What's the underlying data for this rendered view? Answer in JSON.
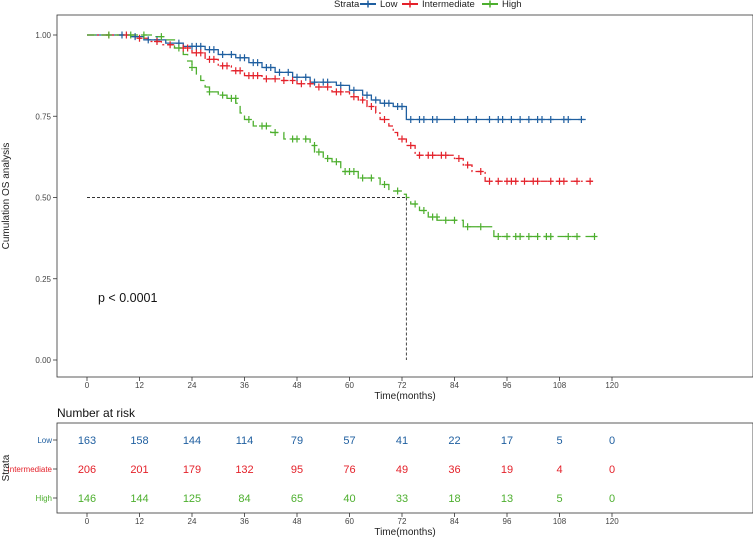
{
  "legend": {
    "title": "Strata",
    "items": [
      {
        "name": "Low",
        "color": "#1f5fa0"
      },
      {
        "name": "Intermediate",
        "color": "#e4212a"
      },
      {
        "name": "High",
        "color": "#4daf2e"
      }
    ]
  },
  "chart_data": {
    "type": "line",
    "title": "",
    "xlabel": "Time(months)",
    "ylabel": "Cumulation OS analysis",
    "xlim": [
      -10,
      125
    ],
    "ylim": [
      -0.05,
      1.05
    ],
    "x_ticks": [
      "0",
      "12",
      "24",
      "36",
      "48",
      "60",
      "72",
      "84",
      "96",
      "108",
      "120"
    ],
    "y_ticks": [
      "0.00",
      "0.25",
      "0.50",
      "0.75",
      "1.00"
    ],
    "pvalue_label": "p < 0.0001",
    "median_line": {
      "x": 73,
      "y": 0.5
    },
    "series": [
      {
        "name": "Low",
        "color": "#1f5fa0",
        "dash": "",
        "steps": [
          [
            0,
            1.0
          ],
          [
            10,
            0.995
          ],
          [
            13,
            0.985
          ],
          [
            18,
            0.975
          ],
          [
            22,
            0.965
          ],
          [
            27,
            0.955
          ],
          [
            30,
            0.94
          ],
          [
            34,
            0.93
          ],
          [
            37,
            0.915
          ],
          [
            40,
            0.9
          ],
          [
            43,
            0.885
          ],
          [
            47,
            0.87
          ],
          [
            51,
            0.855
          ],
          [
            57,
            0.845
          ],
          [
            60,
            0.83
          ],
          [
            63,
            0.815
          ],
          [
            65,
            0.8
          ],
          [
            67,
            0.79
          ],
          [
            70,
            0.78
          ],
          [
            73,
            0.74
          ],
          [
            114,
            0.74
          ]
        ],
        "censors": [
          [
            8,
            1.0
          ],
          [
            11,
            0.995
          ],
          [
            14,
            0.985
          ],
          [
            16,
            0.985
          ],
          [
            21,
            0.975
          ],
          [
            24,
            0.965
          ],
          [
            25,
            0.965
          ],
          [
            26,
            0.965
          ],
          [
            28,
            0.955
          ],
          [
            29,
            0.955
          ],
          [
            31,
            0.94
          ],
          [
            33,
            0.94
          ],
          [
            35,
            0.93
          ],
          [
            36,
            0.93
          ],
          [
            38,
            0.915
          ],
          [
            39,
            0.915
          ],
          [
            41,
            0.9
          ],
          [
            42,
            0.9
          ],
          [
            44,
            0.885
          ],
          [
            46,
            0.885
          ],
          [
            48,
            0.87
          ],
          [
            50,
            0.87
          ],
          [
            52,
            0.855
          ],
          [
            54,
            0.855
          ],
          [
            55,
            0.855
          ],
          [
            58,
            0.845
          ],
          [
            61,
            0.83
          ],
          [
            64,
            0.815
          ],
          [
            66,
            0.8
          ],
          [
            68,
            0.79
          ],
          [
            69,
            0.79
          ],
          [
            71,
            0.78
          ],
          [
            72,
            0.78
          ],
          [
            74,
            0.74
          ],
          [
            76,
            0.74
          ],
          [
            77,
            0.74
          ],
          [
            79,
            0.74
          ],
          [
            80,
            0.74
          ],
          [
            84,
            0.74
          ],
          [
            87,
            0.74
          ],
          [
            89,
            0.74
          ],
          [
            92,
            0.74
          ],
          [
            94,
            0.74
          ],
          [
            95,
            0.74
          ],
          [
            97,
            0.74
          ],
          [
            99,
            0.74
          ],
          [
            101,
            0.74
          ],
          [
            103,
            0.74
          ],
          [
            104,
            0.74
          ],
          [
            106,
            0.74
          ],
          [
            109,
            0.74
          ],
          [
            110,
            0.74
          ],
          [
            113,
            0.74
          ]
        ]
      },
      {
        "name": "Intermediate",
        "color": "#e4212a",
        "dash": "7,3,2,3",
        "steps": [
          [
            0,
            1.0
          ],
          [
            11,
            0.99
          ],
          [
            14,
            0.98
          ],
          [
            17,
            0.97
          ],
          [
            20,
            0.96
          ],
          [
            24,
            0.945
          ],
          [
            27,
            0.925
          ],
          [
            30,
            0.905
          ],
          [
            33,
            0.89
          ],
          [
            36,
            0.875
          ],
          [
            40,
            0.865
          ],
          [
            44,
            0.86
          ],
          [
            48,
            0.85
          ],
          [
            52,
            0.84
          ],
          [
            56,
            0.825
          ],
          [
            60,
            0.81
          ],
          [
            62,
            0.8
          ],
          [
            64,
            0.78
          ],
          [
            66,
            0.76
          ],
          [
            67,
            0.74
          ],
          [
            69,
            0.72
          ],
          [
            70,
            0.7
          ],
          [
            71,
            0.68
          ],
          [
            73,
            0.66
          ],
          [
            75,
            0.63
          ],
          [
            84,
            0.62
          ],
          [
            86,
            0.6
          ],
          [
            88,
            0.58
          ],
          [
            91,
            0.55
          ],
          [
            116,
            0.55
          ]
        ],
        "censors": [
          [
            5,
            1.0
          ],
          [
            9,
            1.0
          ],
          [
            12,
            0.99
          ],
          [
            16,
            0.98
          ],
          [
            19,
            0.97
          ],
          [
            22,
            0.96
          ],
          [
            23,
            0.96
          ],
          [
            25,
            0.945
          ],
          [
            26,
            0.945
          ],
          [
            28,
            0.925
          ],
          [
            29,
            0.925
          ],
          [
            31,
            0.905
          ],
          [
            32,
            0.905
          ],
          [
            34,
            0.89
          ],
          [
            35,
            0.89
          ],
          [
            37,
            0.875
          ],
          [
            38,
            0.875
          ],
          [
            39,
            0.875
          ],
          [
            41,
            0.865
          ],
          [
            43,
            0.865
          ],
          [
            45,
            0.86
          ],
          [
            47,
            0.86
          ],
          [
            49,
            0.85
          ],
          [
            51,
            0.85
          ],
          [
            53,
            0.84
          ],
          [
            55,
            0.84
          ],
          [
            57,
            0.825
          ],
          [
            58,
            0.825
          ],
          [
            61,
            0.81
          ],
          [
            63,
            0.8
          ],
          [
            65,
            0.78
          ],
          [
            68,
            0.74
          ],
          [
            72,
            0.68
          ],
          [
            74,
            0.66
          ],
          [
            76,
            0.63
          ],
          [
            78,
            0.63
          ],
          [
            79,
            0.63
          ],
          [
            81,
            0.63
          ],
          [
            82,
            0.63
          ],
          [
            85,
            0.62
          ],
          [
            87,
            0.6
          ],
          [
            90,
            0.58
          ],
          [
            92,
            0.55
          ],
          [
            94,
            0.55
          ],
          [
            96,
            0.55
          ],
          [
            97,
            0.55
          ],
          [
            98,
            0.55
          ],
          [
            100,
            0.55
          ],
          [
            102,
            0.55
          ],
          [
            103,
            0.55
          ],
          [
            106,
            0.55
          ],
          [
            108,
            0.55
          ],
          [
            109,
            0.55
          ],
          [
            112,
            0.55
          ],
          [
            115,
            0.55
          ]
        ]
      },
      {
        "name": "High",
        "color": "#4daf2e",
        "dash": "9,5",
        "steps": [
          [
            0,
            1.0
          ],
          [
            15,
            0.995
          ],
          [
            18,
            0.985
          ],
          [
            20,
            0.96
          ],
          [
            22,
            0.94
          ],
          [
            23,
            0.92
          ],
          [
            24,
            0.9
          ],
          [
            25,
            0.88
          ],
          [
            26,
            0.86
          ],
          [
            27,
            0.84
          ],
          [
            28,
            0.825
          ],
          [
            30,
            0.815
          ],
          [
            32,
            0.805
          ],
          [
            34,
            0.79
          ],
          [
            35,
            0.76
          ],
          [
            36,
            0.74
          ],
          [
            38,
            0.72
          ],
          [
            42,
            0.7
          ],
          [
            45,
            0.68
          ],
          [
            51,
            0.66
          ],
          [
            52,
            0.64
          ],
          [
            54,
            0.62
          ],
          [
            56,
            0.61
          ],
          [
            58,
            0.58
          ],
          [
            62,
            0.56
          ],
          [
            67,
            0.54
          ],
          [
            69,
            0.52
          ],
          [
            72,
            0.51
          ],
          [
            73,
            0.5
          ],
          [
            74,
            0.48
          ],
          [
            76,
            0.46
          ],
          [
            78,
            0.44
          ],
          [
            80,
            0.43
          ],
          [
            86,
            0.41
          ],
          [
            93,
            0.38
          ],
          [
            117,
            0.38
          ]
        ],
        "censors": [
          [
            5,
            1.0
          ],
          [
            10,
            1.0
          ],
          [
            13,
            1.0
          ],
          [
            17,
            0.995
          ],
          [
            21,
            0.96
          ],
          [
            24,
            0.9
          ],
          [
            28,
            0.825
          ],
          [
            31,
            0.815
          ],
          [
            33,
            0.805
          ],
          [
            34,
            0.805
          ],
          [
            37,
            0.74
          ],
          [
            40,
            0.72
          ],
          [
            41,
            0.72
          ],
          [
            43,
            0.7
          ],
          [
            47,
            0.68
          ],
          [
            48,
            0.68
          ],
          [
            50,
            0.68
          ],
          [
            52,
            0.66
          ],
          [
            53,
            0.64
          ],
          [
            55,
            0.62
          ],
          [
            57,
            0.61
          ],
          [
            59,
            0.58
          ],
          [
            60,
            0.58
          ],
          [
            61,
            0.58
          ],
          [
            63,
            0.56
          ],
          [
            65,
            0.56
          ],
          [
            68,
            0.54
          ],
          [
            71,
            0.52
          ],
          [
            75,
            0.48
          ],
          [
            77,
            0.46
          ],
          [
            79,
            0.44
          ],
          [
            80,
            0.44
          ],
          [
            82,
            0.43
          ],
          [
            84,
            0.43
          ],
          [
            87,
            0.41
          ],
          [
            90,
            0.41
          ],
          [
            94,
            0.38
          ],
          [
            96,
            0.38
          ],
          [
            98,
            0.38
          ],
          [
            99,
            0.38
          ],
          [
            101,
            0.38
          ],
          [
            103,
            0.38
          ],
          [
            105,
            0.38
          ],
          [
            106,
            0.38
          ],
          [
            110,
            0.38
          ],
          [
            112,
            0.38
          ],
          [
            116,
            0.38
          ]
        ]
      }
    ]
  },
  "risk_table": {
    "title": "Number at risk",
    "ylabel": "Strata",
    "xlabel": "Time(months)",
    "times": [
      0,
      12,
      24,
      36,
      48,
      60,
      72,
      84,
      96,
      108,
      120
    ],
    "rows": [
      {
        "label": "Low",
        "color": "#1f5fa0",
        "counts": [
          "163",
          "158",
          "144",
          "114",
          "79",
          "57",
          "41",
          "22",
          "17",
          "5",
          "0"
        ]
      },
      {
        "label": "Intermediate",
        "color": "#e4212a",
        "counts": [
          "206",
          "201",
          "179",
          "132",
          "95",
          "76",
          "49",
          "36",
          "19",
          "4",
          "0"
        ]
      },
      {
        "label": "High",
        "color": "#4daf2e",
        "counts": [
          "146",
          "144",
          "125",
          "84",
          "65",
          "40",
          "33",
          "18",
          "13",
          "5",
          "0"
        ]
      }
    ]
  }
}
